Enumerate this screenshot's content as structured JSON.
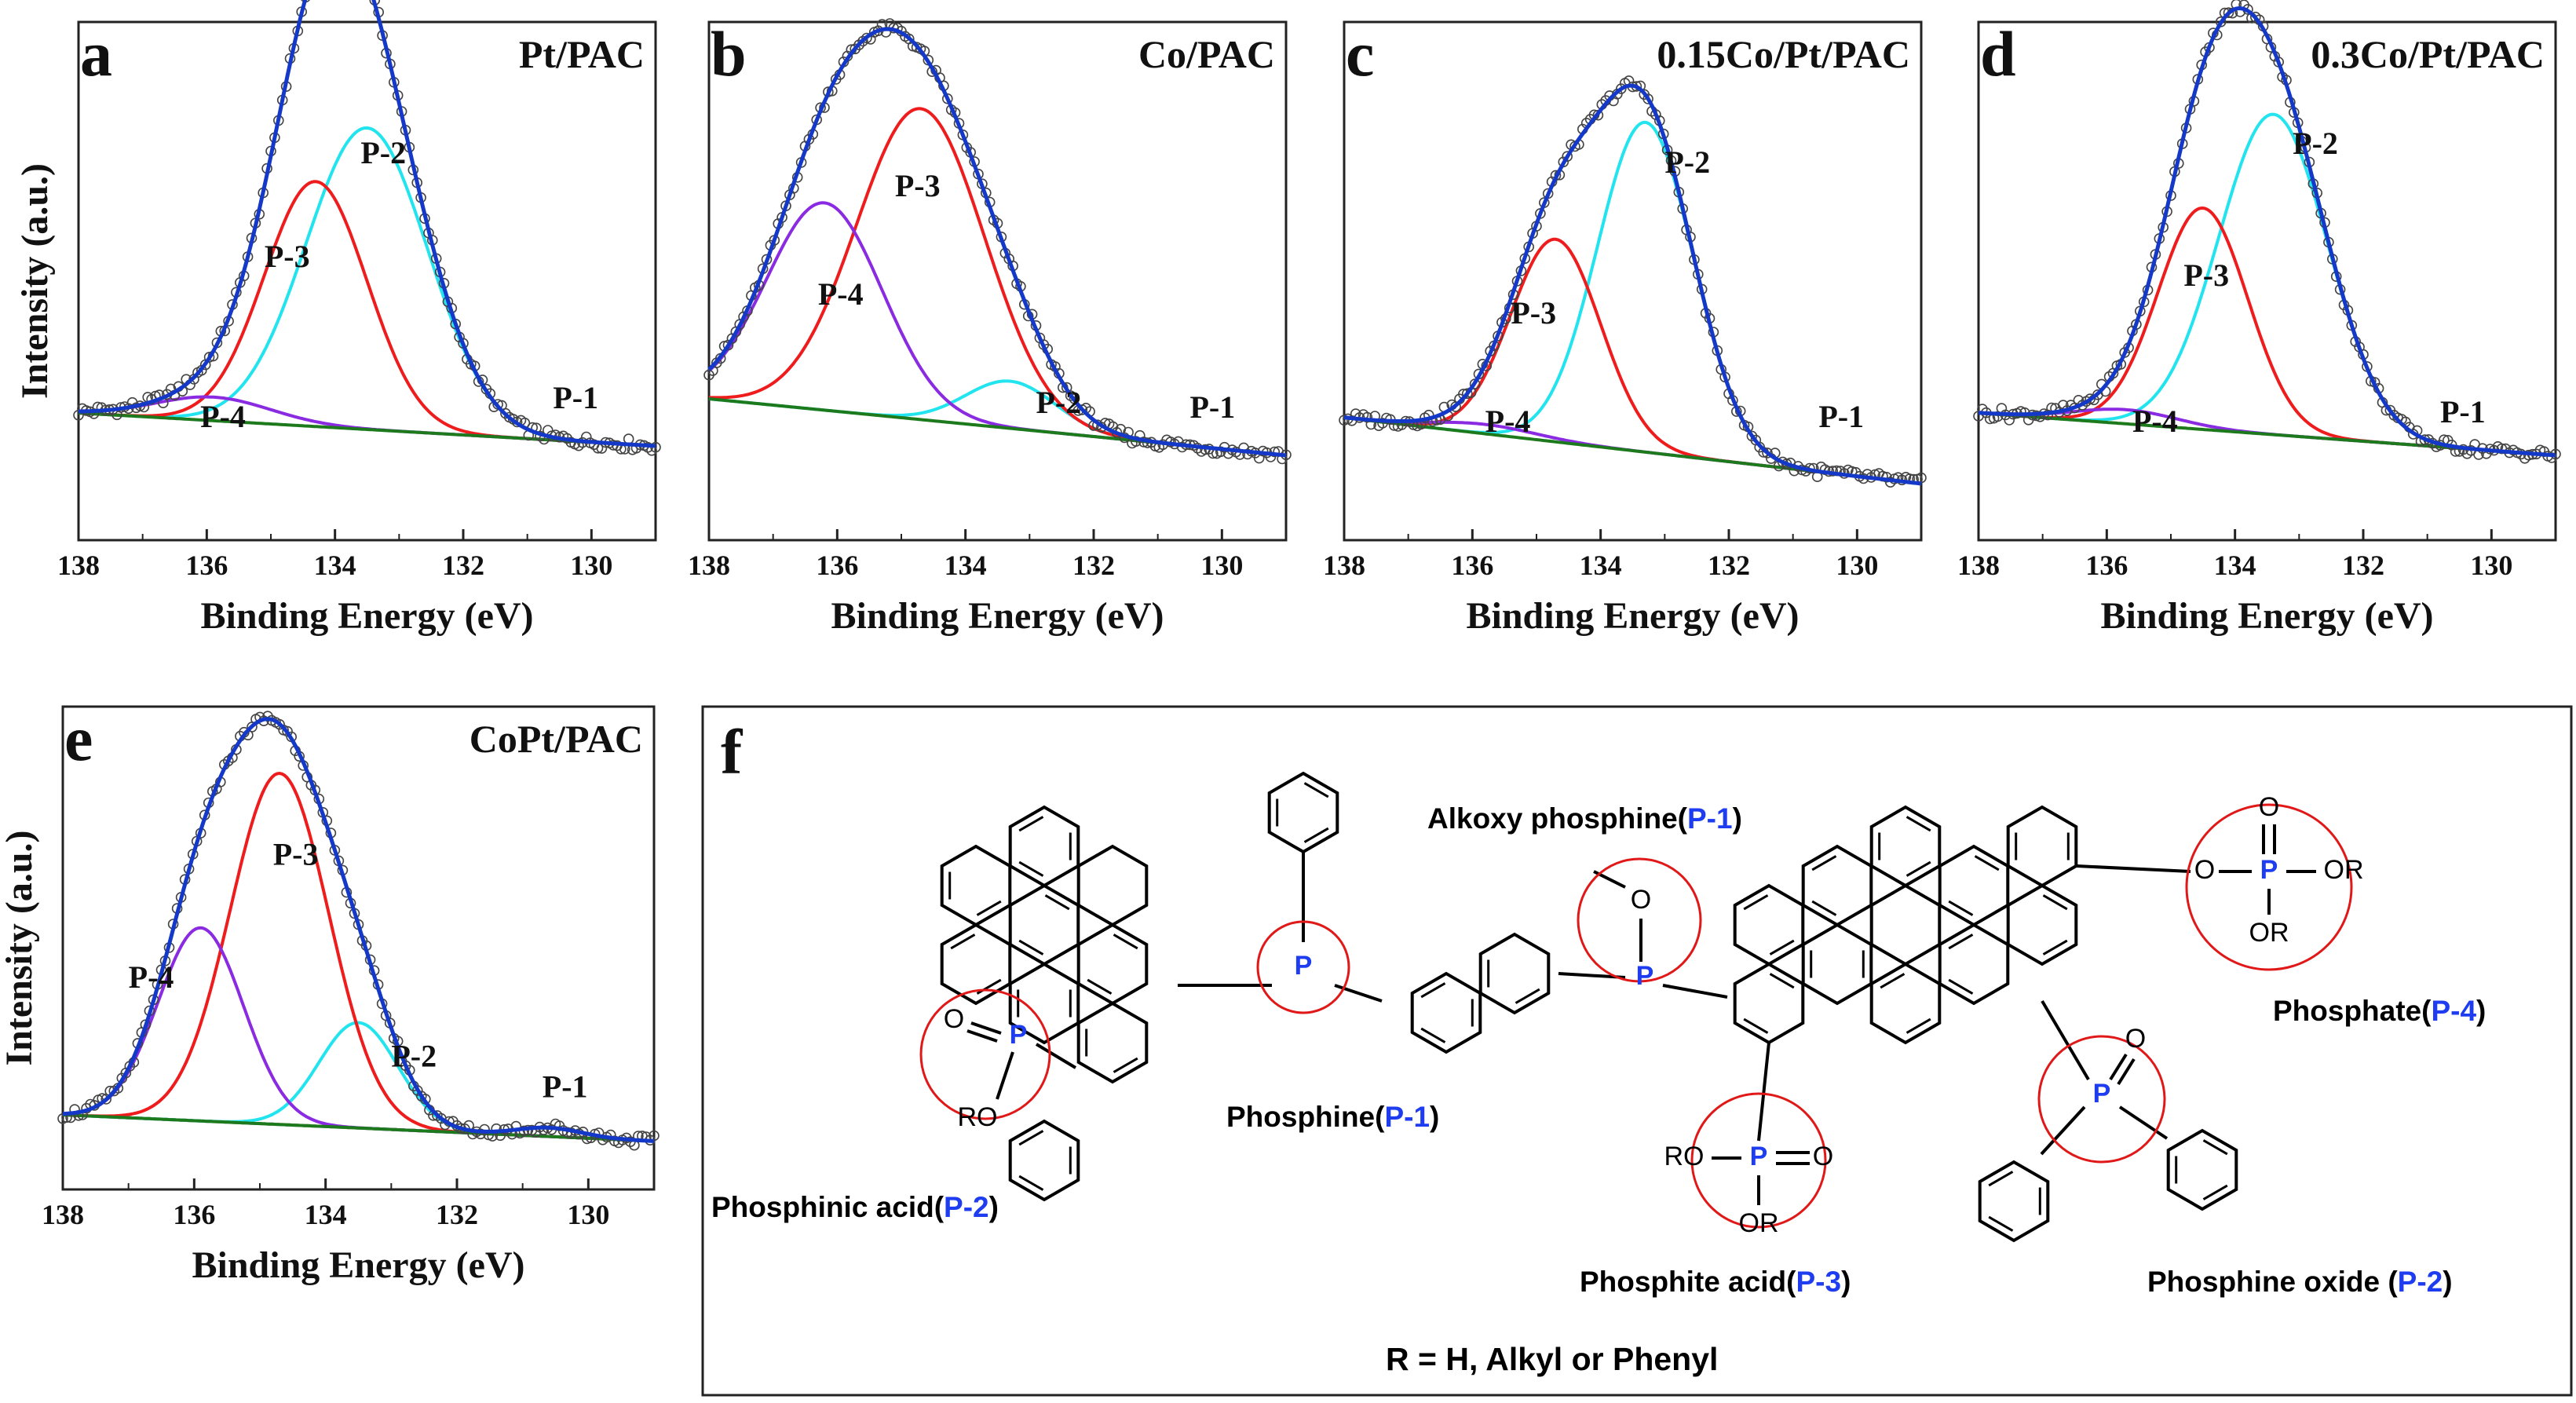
{
  "chart_data": [
    {
      "panel_label": "a",
      "title": "Pt/PAC",
      "type": "line",
      "xlabel": "Binding Energy (eV)",
      "ylabel": "Intensity (a.u.)",
      "show_ylabel": true,
      "xlim": [
        138,
        129
      ],
      "ylim": [
        0,
        1.1
      ],
      "xticks": [
        "138",
        "136",
        "134",
        "132",
        "130"
      ],
      "series": [
        {
          "name": "P-1",
          "center": 131.0,
          "height": 0.0,
          "sigma": 0.6,
          "color": "#888888"
        },
        {
          "name": "P-2",
          "center": 133.5,
          "height": 0.64,
          "sigma": 0.95,
          "color": "#22e4ee"
        },
        {
          "name": "P-3",
          "center": 134.3,
          "height": 0.52,
          "sigma": 0.8,
          "color": "#ee1c1c"
        },
        {
          "name": "P-4",
          "center": 135.9,
          "height": 0.05,
          "sigma": 0.9,
          "color": "#8a2be2"
        }
      ],
      "baseline": {
        "start": 0.27,
        "end": 0.2,
        "color": "#1c7a1c"
      },
      "envelope_color": "#1438c8",
      "annotations": [
        {
          "text": "P-2",
          "x": 133.6,
          "y": 0.8
        },
        {
          "text": "P-3",
          "x": 135.1,
          "y": 0.58
        },
        {
          "text": "P-4",
          "x": 136.1,
          "y": 0.24
        },
        {
          "text": "P-1",
          "x": 130.6,
          "y": 0.28
        }
      ]
    },
    {
      "panel_label": "b",
      "title": "Co/PAC",
      "type": "line",
      "xlabel": "Binding Energy (eV)",
      "ylabel": "Intensity (a.u.)",
      "show_ylabel": false,
      "xlim": [
        138,
        129
      ],
      "ylim": [
        0,
        1.1
      ],
      "xticks": [
        "138",
        "136",
        "134",
        "132",
        "130"
      ],
      "series": [
        {
          "name": "P-1",
          "center": 130.9,
          "height": 0.0,
          "sigma": 0.6,
          "color": "#888888"
        },
        {
          "name": "P-2",
          "center": 133.3,
          "height": 0.1,
          "sigma": 0.7,
          "color": "#22e4ee"
        },
        {
          "name": "P-3",
          "center": 134.7,
          "height": 0.66,
          "sigma": 1.0,
          "color": "#ee1c1c"
        },
        {
          "name": "P-4",
          "center": 136.2,
          "height": 0.44,
          "sigma": 0.9,
          "color": "#8a2be2"
        }
      ],
      "baseline": {
        "start": 0.3,
        "end": 0.18,
        "color": "#1c7a1c"
      },
      "envelope_color": "#1438c8",
      "annotations": [
        {
          "text": "P-3",
          "x": 135.1,
          "y": 0.73
        },
        {
          "text": "P-4",
          "x": 136.3,
          "y": 0.5
        },
        {
          "text": "P-2",
          "x": 132.9,
          "y": 0.27
        },
        {
          "text": "P-1",
          "x": 130.5,
          "y": 0.26
        }
      ]
    },
    {
      "panel_label": "c",
      "title": "0.15Co/Pt/PAC",
      "type": "line",
      "xlabel": "Binding Energy (eV)",
      "ylabel": "Intensity (a.u.)",
      "show_ylabel": false,
      "xlim": [
        138,
        129
      ],
      "ylim": [
        0,
        1.1
      ],
      "xticks": [
        "138",
        "136",
        "134",
        "132",
        "130"
      ],
      "series": [
        {
          "name": "P-1",
          "center": 130.8,
          "height": 0.0,
          "sigma": 0.6,
          "color": "#888888"
        },
        {
          "name": "P-2",
          "center": 133.3,
          "height": 0.7,
          "sigma": 0.75,
          "color": "#22e4ee"
        },
        {
          "name": "P-3",
          "center": 134.7,
          "height": 0.43,
          "sigma": 0.7,
          "color": "#ee1c1c"
        },
        {
          "name": "P-4",
          "center": 135.8,
          "height": 0.02,
          "sigma": 0.8,
          "color": "#8a2be2"
        }
      ],
      "baseline": {
        "start": 0.26,
        "end": 0.12,
        "color": "#1c7a1c"
      },
      "envelope_color": "#1438c8",
      "annotations": [
        {
          "text": "P-2",
          "x": 133.0,
          "y": 0.78
        },
        {
          "text": "P-3",
          "x": 135.4,
          "y": 0.46
        },
        {
          "text": "P-4",
          "x": 135.8,
          "y": 0.23
        },
        {
          "text": "P-1",
          "x": 130.6,
          "y": 0.24
        }
      ]
    },
    {
      "panel_label": "d",
      "title": "0.3Co/Pt/PAC",
      "type": "line",
      "xlabel": "Binding Energy (eV)",
      "ylabel": "Intensity (a.u.)",
      "show_ylabel": false,
      "xlim": [
        138,
        129
      ],
      "ylim": [
        0,
        1.1
      ],
      "xticks": [
        "138",
        "136",
        "134",
        "132",
        "130"
      ],
      "series": [
        {
          "name": "P-1",
          "center": 131.0,
          "height": 0.0,
          "sigma": 0.6,
          "color": "#888888"
        },
        {
          "name": "P-2",
          "center": 133.4,
          "height": 0.68,
          "sigma": 0.85,
          "color": "#22e4ee"
        },
        {
          "name": "P-3",
          "center": 134.5,
          "height": 0.47,
          "sigma": 0.7,
          "color": "#ee1c1c"
        },
        {
          "name": "P-4",
          "center": 135.7,
          "height": 0.03,
          "sigma": 0.8,
          "color": "#8a2be2"
        }
      ],
      "baseline": {
        "start": 0.27,
        "end": 0.18,
        "color": "#1c7a1c"
      },
      "envelope_color": "#1438c8",
      "annotations": [
        {
          "text": "P-2",
          "x": 133.1,
          "y": 0.82
        },
        {
          "text": "P-3",
          "x": 134.8,
          "y": 0.54
        },
        {
          "text": "P-4",
          "x": 135.6,
          "y": 0.23
        },
        {
          "text": "P-1",
          "x": 130.8,
          "y": 0.25
        }
      ]
    },
    {
      "panel_label": "e",
      "title": "CoPt/PAC",
      "type": "line",
      "xlabel": "Binding Energy (eV)",
      "ylabel": "Intensity (a.u.)",
      "show_ylabel": true,
      "xlim": [
        138,
        129
      ],
      "ylim": [
        0,
        1.1
      ],
      "xticks": [
        "138",
        "136",
        "134",
        "132",
        "130"
      ],
      "series": [
        {
          "name": "P-1",
          "center": 130.6,
          "height": 0.02,
          "sigma": 0.5,
          "color": "#888888"
        },
        {
          "name": "P-2",
          "center": 133.5,
          "height": 0.24,
          "sigma": 0.6,
          "color": "#22e4ee"
        },
        {
          "name": "P-3",
          "center": 134.7,
          "height": 0.8,
          "sigma": 0.75,
          "color": "#ee1c1c"
        },
        {
          "name": "P-4",
          "center": 135.9,
          "height": 0.44,
          "sigma": 0.65,
          "color": "#8a2be2"
        }
      ],
      "baseline": {
        "start": 0.17,
        "end": 0.11,
        "color": "#1c7a1c"
      },
      "envelope_color": "#1438c8",
      "annotations": [
        {
          "text": "P-3",
          "x": 134.8,
          "y": 0.74
        },
        {
          "text": "P-4",
          "x": 137.0,
          "y": 0.46
        },
        {
          "text": "P-2",
          "x": 133.0,
          "y": 0.28
        },
        {
          "text": "P-1",
          "x": 130.7,
          "y": 0.21
        }
      ]
    }
  ],
  "scheme": {
    "panel_label": "f",
    "labels": {
      "alkoxy": "Alkoxy phosphine(",
      "alkoxy_id": "P-1",
      "phosphine": "Phosphine(",
      "phosphine_id": "P-1",
      "phosphinic": "Phosphinic acid(",
      "phosphinic_id": "P-2",
      "phosphite": "Phosphite  acid(",
      "phosphite_id": "P-3",
      "phosphate": "Phosphate(",
      "phosphate_id": "P-4",
      "phosphine_oxide": "Phosphine oxide (",
      "phosphine_oxide_id": "P-2",
      "close": ")"
    },
    "footnote": "R = H, Alkyl or Phenyl",
    "atoms": {
      "P": "P",
      "O": "O",
      "RO": "RO",
      "OR": "OR"
    },
    "colors": {
      "phosphorus": "#1e3cf0",
      "highlight": "#e01818",
      "bond": "#000000"
    }
  }
}
